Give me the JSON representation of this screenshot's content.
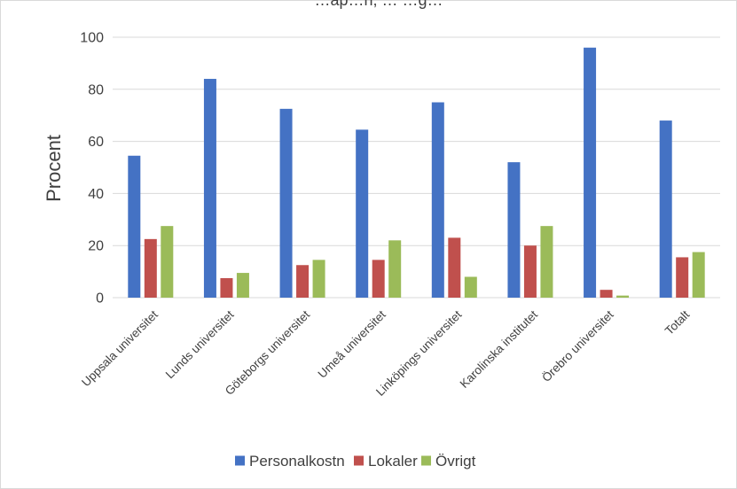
{
  "chart_data": {
    "type": "bar",
    "title": "…ap…n, … …g…",
    "ylabel": "Procent",
    "xlabel": "",
    "ylim": [
      0,
      100
    ],
    "yticks": [
      0,
      20,
      40,
      60,
      80,
      100
    ],
    "grid": true,
    "legend_position": "bottom",
    "categories": [
      "Uppsala universitet",
      "Lunds universitet",
      "Göteborgs universitet",
      "Umeå universitet",
      "Linköpings universitet",
      "Karolinska institutet",
      "Örebro universitet",
      "Totalt"
    ],
    "series": [
      {
        "name": "Personalkostn",
        "color": "#4472C4",
        "values": [
          54.5,
          84,
          72.5,
          64.5,
          75,
          52,
          96,
          68
        ]
      },
      {
        "name": "Lokaler",
        "color": "#C0504D",
        "values": [
          22.5,
          7.5,
          12.5,
          14.5,
          23,
          20,
          3,
          15.5
        ]
      },
      {
        "name": "Övrigt",
        "color": "#9BBB59",
        "values": [
          27.5,
          9.5,
          14.5,
          22,
          8,
          27.5,
          0.8,
          17.5
        ]
      }
    ]
  }
}
